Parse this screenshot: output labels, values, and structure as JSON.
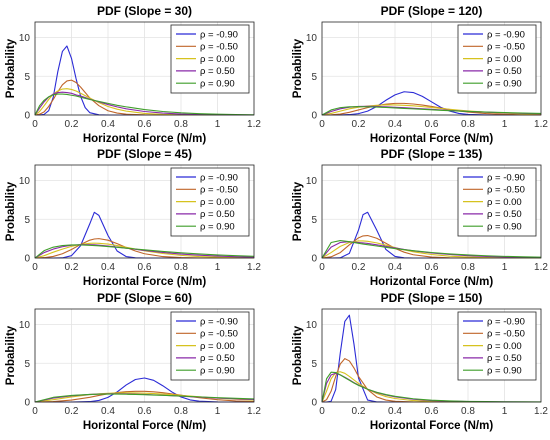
{
  "figure": {
    "xlabel": "Horizontal Force (N/m)",
    "ylabel": "Probability",
    "legend_labels": [
      "ρ = -0.90",
      "ρ = -0.50",
      "ρ = 0.00",
      "ρ = 0.50",
      "ρ = 0.90"
    ],
    "colors": [
      "#2b2bd6",
      "#c0662a",
      "#d6c21f",
      "#8a2aa8",
      "#3f9e2a"
    ]
  },
  "chart_data": [
    {
      "type": "line",
      "title": "PDF  (Slope = 30)",
      "xlabel": "Horizontal Force (N/m)",
      "ylabel": "Probability",
      "xlim": [
        0,
        1.2
      ],
      "ylim": [
        0,
        12
      ],
      "xticks": [
        "0",
        "0.2",
        "0.4",
        "0.6",
        "0.8",
        "1",
        "1.2"
      ],
      "yticks": [
        "0",
        "5",
        "10"
      ],
      "grid": true,
      "legend_position": "top-right",
      "x": [
        0,
        0.025,
        0.05,
        0.075,
        0.1,
        0.125,
        0.15,
        0.175,
        0.2,
        0.225,
        0.25,
        0.275,
        0.3,
        0.35,
        0.4,
        0.45,
        0.5,
        0.6,
        0.7,
        0.8,
        0.9,
        1.0,
        1.1,
        1.2
      ],
      "series": [
        {
          "name": "ρ = -0.90",
          "values": [
            0,
            0.01,
            0.08,
            0.55,
            2.3,
            5.6,
            8.2,
            8.9,
            7.3,
            4.7,
            2.4,
            0.95,
            0.3,
            0.02,
            0,
            0,
            0,
            0,
            0,
            0,
            0,
            0,
            0,
            0
          ]
        },
        {
          "name": "ρ = -0.50",
          "values": [
            0,
            0.1,
            0.4,
            1.1,
            2.0,
            3.0,
            3.9,
            4.4,
            4.5,
            4.2,
            3.6,
            2.9,
            2.2,
            1.2,
            0.55,
            0.25,
            0.1,
            0.02,
            0,
            0,
            0,
            0,
            0,
            0
          ]
        },
        {
          "name": "ρ = 0.00",
          "values": [
            0,
            0.45,
            1.2,
            2.0,
            2.7,
            3.1,
            3.35,
            3.4,
            3.3,
            3.1,
            2.8,
            2.5,
            2.2,
            1.6,
            1.1,
            0.75,
            0.5,
            0.2,
            0.08,
            0.03,
            0.01,
            0,
            0,
            0
          ]
        },
        {
          "name": "ρ = 0.50",
          "values": [
            0,
            0.9,
            1.7,
            2.3,
            2.7,
            2.9,
            2.95,
            2.9,
            2.8,
            2.6,
            2.45,
            2.25,
            2.05,
            1.7,
            1.35,
            1.05,
            0.8,
            0.45,
            0.25,
            0.12,
            0.06,
            0.03,
            0.01,
            0
          ]
        },
        {
          "name": "ρ = 0.90",
          "values": [
            0,
            1.2,
            1.9,
            2.35,
            2.6,
            2.7,
            2.7,
            2.65,
            2.55,
            2.45,
            2.3,
            2.15,
            2.0,
            1.75,
            1.5,
            1.25,
            1.05,
            0.7,
            0.45,
            0.28,
            0.17,
            0.1,
            0.06,
            0.03
          ]
        }
      ]
    },
    {
      "type": "line",
      "title": "PDF  (Slope = 120)",
      "xlabel": "Horizontal Force (N/m)",
      "ylabel": "Probability",
      "xlim": [
        0,
        1.2
      ],
      "ylim": [
        0,
        12
      ],
      "xticks": [
        "0",
        "0.2",
        "0.4",
        "0.6",
        "0.8",
        "1",
        "1.2"
      ],
      "yticks": [
        "0",
        "5",
        "10"
      ],
      "grid": true,
      "legend_position": "top-right",
      "x": [
        0,
        0.05,
        0.1,
        0.15,
        0.2,
        0.25,
        0.3,
        0.35,
        0.4,
        0.45,
        0.5,
        0.55,
        0.6,
        0.65,
        0.7,
        0.75,
        0.8,
        0.9,
        1.0,
        1.1,
        1.2
      ],
      "series": [
        {
          "name": "ρ = -0.90",
          "values": [
            0,
            0,
            0.01,
            0.05,
            0.18,
            0.5,
            1.1,
            1.9,
            2.6,
            3.0,
            2.9,
            2.4,
            1.7,
            1.0,
            0.5,
            0.2,
            0.07,
            0.01,
            0,
            0,
            0
          ]
        },
        {
          "name": "ρ = -0.50",
          "values": [
            0,
            0.02,
            0.12,
            0.35,
            0.65,
            0.95,
            1.2,
            1.4,
            1.5,
            1.5,
            1.42,
            1.28,
            1.1,
            0.9,
            0.7,
            0.52,
            0.38,
            0.18,
            0.08,
            0.03,
            0.01
          ]
        },
        {
          "name": "ρ = 0.00",
          "values": [
            0,
            0.2,
            0.5,
            0.8,
            1.0,
            1.15,
            1.25,
            1.3,
            1.3,
            1.25,
            1.18,
            1.08,
            0.97,
            0.85,
            0.74,
            0.63,
            0.53,
            0.36,
            0.24,
            0.15,
            0.1
          ]
        },
        {
          "name": "ρ = 0.50",
          "values": [
            0,
            0.45,
            0.8,
            1.0,
            1.1,
            1.12,
            1.1,
            1.06,
            1.0,
            0.94,
            0.87,
            0.8,
            0.73,
            0.66,
            0.59,
            0.52,
            0.46,
            0.36,
            0.28,
            0.21,
            0.16
          ]
        },
        {
          "name": "ρ = 0.90",
          "values": [
            0,
            0.65,
            0.95,
            1.05,
            1.08,
            1.06,
            1.02,
            0.97,
            0.91,
            0.85,
            0.79,
            0.73,
            0.67,
            0.61,
            0.56,
            0.51,
            0.46,
            0.38,
            0.31,
            0.25,
            0.2
          ]
        }
      ]
    },
    {
      "type": "line",
      "title": "PDF  (Slope = 45)",
      "xlabel": "Horizontal Force (N/m)",
      "ylabel": "Probability",
      "xlim": [
        0,
        1.2
      ],
      "ylim": [
        0,
        12
      ],
      "xticks": [
        "0",
        "0.2",
        "0.4",
        "0.6",
        "0.8",
        "1",
        "1.2"
      ],
      "yticks": [
        "0",
        "5",
        "10"
      ],
      "grid": true,
      "legend_position": "top-right",
      "x": [
        0,
        0.05,
        0.1,
        0.15,
        0.2,
        0.25,
        0.3,
        0.325,
        0.35,
        0.4,
        0.45,
        0.5,
        0.55,
        0.6,
        0.7,
        0.8,
        0.9,
        1.0,
        1.1,
        1.2
      ],
      "series": [
        {
          "name": "ρ = -0.90",
          "values": [
            0,
            0,
            0,
            0.02,
            0.3,
            1.6,
            4.4,
            5.9,
            5.5,
            2.9,
            0.9,
            0.18,
            0.02,
            0,
            0,
            0,
            0,
            0,
            0,
            0
          ]
        },
        {
          "name": "ρ = -0.50",
          "values": [
            0,
            0.05,
            0.2,
            0.55,
            1.1,
            1.75,
            2.3,
            2.45,
            2.5,
            2.3,
            1.85,
            1.35,
            0.9,
            0.55,
            0.18,
            0.05,
            0.01,
            0,
            0,
            0
          ]
        },
        {
          "name": "ρ = 0.00",
          "values": [
            0,
            0.3,
            0.75,
            1.15,
            1.5,
            1.75,
            1.9,
            1.92,
            1.9,
            1.8,
            1.6,
            1.38,
            1.15,
            0.93,
            0.58,
            0.34,
            0.19,
            0.1,
            0.05,
            0.03
          ]
        },
        {
          "name": "ρ = 0.50",
          "values": [
            0,
            0.7,
            1.15,
            1.45,
            1.65,
            1.72,
            1.72,
            1.7,
            1.66,
            1.55,
            1.42,
            1.27,
            1.12,
            0.97,
            0.72,
            0.51,
            0.36,
            0.25,
            0.17,
            0.11
          ]
        },
        {
          "name": "ρ = 0.90",
          "values": [
            0,
            0.95,
            1.4,
            1.6,
            1.68,
            1.68,
            1.64,
            1.61,
            1.57,
            1.48,
            1.38,
            1.27,
            1.16,
            1.05,
            0.85,
            0.67,
            0.52,
            0.4,
            0.3,
            0.22
          ]
        }
      ]
    },
    {
      "type": "line",
      "title": "PDF  (Slope = 135)",
      "xlabel": "Horizontal Force (N/m)",
      "ylabel": "Probability",
      "xlim": [
        0,
        1.2
      ],
      "ylim": [
        0,
        12
      ],
      "xticks": [
        "0",
        "0.2",
        "0.4",
        "0.6",
        "0.8",
        "1",
        "1.2"
      ],
      "yticks": [
        "0",
        "5",
        "10"
      ],
      "grid": true,
      "legend_position": "top-right",
      "x": [
        0,
        0.05,
        0.1,
        0.15,
        0.2,
        0.225,
        0.25,
        0.3,
        0.35,
        0.4,
        0.45,
        0.5,
        0.6,
        0.7,
        0.8,
        0.9,
        1.0,
        1.1,
        1.2
      ],
      "series": [
        {
          "name": "ρ = -0.90",
          "values": [
            0,
            0,
            0.02,
            0.6,
            3.6,
            5.6,
            5.9,
            3.6,
            1.1,
            0.2,
            0.02,
            0,
            0,
            0,
            0,
            0,
            0,
            0,
            0
          ]
        },
        {
          "name": "ρ = -0.50",
          "values": [
            0,
            0.15,
            0.7,
            1.7,
            2.6,
            2.85,
            2.9,
            2.55,
            1.9,
            1.25,
            0.75,
            0.42,
            0.12,
            0.03,
            0.01,
            0,
            0,
            0,
            0
          ]
        },
        {
          "name": "ρ = 0.00",
          "values": [
            0,
            0.7,
            1.5,
            2.0,
            2.2,
            2.2,
            2.15,
            1.95,
            1.65,
            1.35,
            1.05,
            0.8,
            0.45,
            0.24,
            0.12,
            0.06,
            0.03,
            0.01,
            0
          ]
        },
        {
          "name": "ρ = 0.50",
          "values": [
            0,
            1.4,
            2.0,
            2.1,
            2.0,
            1.95,
            1.88,
            1.7,
            1.5,
            1.3,
            1.1,
            0.93,
            0.65,
            0.45,
            0.3,
            0.2,
            0.13,
            0.09,
            0.06
          ]
        },
        {
          "name": "ρ = 0.90",
          "values": [
            0,
            2.0,
            2.25,
            2.1,
            1.9,
            1.8,
            1.72,
            1.55,
            1.38,
            1.22,
            1.07,
            0.94,
            0.71,
            0.53,
            0.39,
            0.29,
            0.21,
            0.15,
            0.11
          ]
        }
      ]
    },
    {
      "type": "line",
      "title": "PDF  (Slope = 60)",
      "xlabel": "Horizontal Force (N/m)",
      "ylabel": "Probability",
      "xlim": [
        0,
        1.2
      ],
      "ylim": [
        0,
        12
      ],
      "xticks": [
        "0",
        "0.2",
        "0.4",
        "0.6",
        "0.8",
        "1",
        "1.2"
      ],
      "yticks": [
        "0",
        "5",
        "10"
      ],
      "grid": true,
      "legend_position": "top-right",
      "x": [
        0,
        0.1,
        0.2,
        0.3,
        0.35,
        0.4,
        0.45,
        0.5,
        0.55,
        0.6,
        0.65,
        0.7,
        0.75,
        0.8,
        0.85,
        0.9,
        1.0,
        1.1,
        1.2
      ],
      "series": [
        {
          "name": "ρ = -0.90",
          "values": [
            0,
            0,
            0,
            0.05,
            0.2,
            0.6,
            1.3,
            2.2,
            2.9,
            3.1,
            2.8,
            2.1,
            1.3,
            0.65,
            0.27,
            0.1,
            0.01,
            0,
            0
          ]
        },
        {
          "name": "ρ = -0.50",
          "values": [
            0,
            0.05,
            0.25,
            0.6,
            0.85,
            1.05,
            1.22,
            1.33,
            1.38,
            1.38,
            1.32,
            1.2,
            1.05,
            0.88,
            0.7,
            0.55,
            0.3,
            0.14,
            0.06
          ]
        },
        {
          "name": "ρ = 0.00",
          "values": [
            0,
            0.3,
            0.65,
            0.95,
            1.05,
            1.12,
            1.16,
            1.18,
            1.17,
            1.14,
            1.09,
            1.02,
            0.94,
            0.85,
            0.76,
            0.67,
            0.5,
            0.36,
            0.25
          ]
        },
        {
          "name": "ρ = 0.50",
          "values": [
            0,
            0.5,
            0.8,
            0.98,
            1.03,
            1.05,
            1.05,
            1.04,
            1.01,
            0.97,
            0.92,
            0.87,
            0.81,
            0.75,
            0.69,
            0.63,
            0.51,
            0.41,
            0.32
          ]
        },
        {
          "name": "ρ = 0.90",
          "values": [
            0,
            0.6,
            0.85,
            0.98,
            1.01,
            1.02,
            1.02,
            1.0,
            0.97,
            0.94,
            0.9,
            0.86,
            0.81,
            0.76,
            0.71,
            0.66,
            0.56,
            0.47,
            0.39
          ]
        }
      ]
    },
    {
      "type": "line",
      "title": "PDF  (Slope = 150)",
      "xlabel": "Horizontal Force (N/m)",
      "ylabel": "Probability",
      "xlim": [
        0,
        1.2
      ],
      "ylim": [
        0,
        12
      ],
      "xticks": [
        "0",
        "0.2",
        "0.4",
        "0.6",
        "0.8",
        "1",
        "1.2"
      ],
      "yticks": [
        "0",
        "5",
        "10"
      ],
      "grid": true,
      "legend_position": "top-right",
      "x": [
        0,
        0.025,
        0.05,
        0.075,
        0.1,
        0.125,
        0.15,
        0.175,
        0.2,
        0.25,
        0.3,
        0.35,
        0.4,
        0.5,
        0.6,
        0.7,
        0.8,
        0.9,
        1.0,
        1.1,
        1.2
      ],
      "series": [
        {
          "name": "ρ = -0.90",
          "values": [
            0,
            0,
            0.1,
            1.6,
            6.3,
            10.4,
            11.2,
            7.5,
            3.1,
            0.25,
            0.01,
            0,
            0,
            0,
            0,
            0,
            0,
            0,
            0,
            0,
            0
          ]
        },
        {
          "name": "ρ = -0.50",
          "values": [
            0,
            0.3,
            1.4,
            3.3,
            4.9,
            5.6,
            5.3,
            4.4,
            3.3,
            1.6,
            0.65,
            0.25,
            0.09,
            0.01,
            0,
            0,
            0,
            0,
            0,
            0,
            0
          ]
        },
        {
          "name": "ρ = 0.00",
          "values": [
            0,
            1.4,
            3.0,
            3.8,
            3.9,
            3.7,
            3.3,
            2.85,
            2.4,
            1.65,
            1.1,
            0.7,
            0.45,
            0.18,
            0.07,
            0.03,
            0.01,
            0,
            0,
            0,
            0
          ]
        },
        {
          "name": "ρ = 0.50",
          "values": [
            0,
            2.4,
            3.5,
            3.7,
            3.5,
            3.2,
            2.85,
            2.5,
            2.2,
            1.65,
            1.22,
            0.9,
            0.66,
            0.36,
            0.19,
            0.1,
            0.05,
            0.03,
            0.01,
            0,
            0
          ]
        },
        {
          "name": "ρ = 0.90",
          "values": [
            0,
            3.0,
            3.85,
            3.8,
            3.5,
            3.15,
            2.8,
            2.45,
            2.15,
            1.65,
            1.26,
            0.96,
            0.73,
            0.42,
            0.24,
            0.14,
            0.08,
            0.05,
            0.03,
            0.02,
            0.01
          ]
        }
      ]
    }
  ]
}
